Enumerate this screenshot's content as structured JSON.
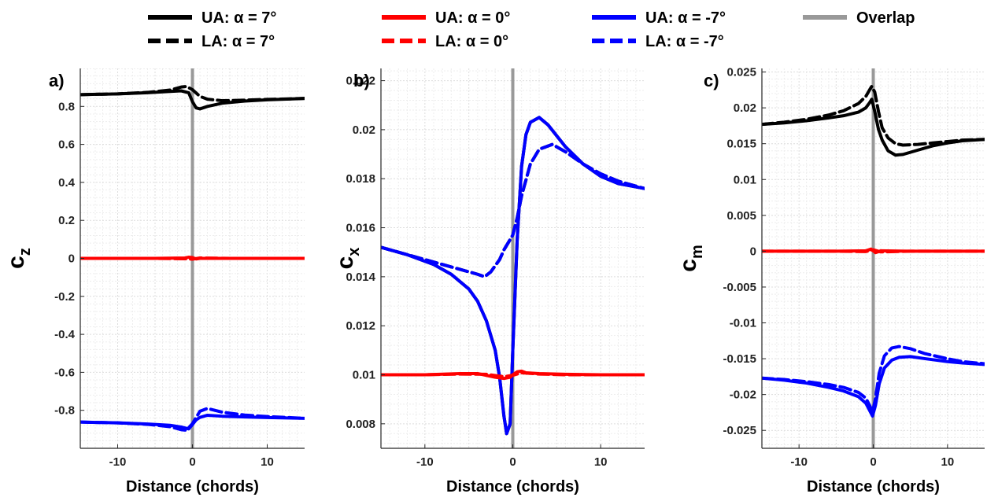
{
  "colors": {
    "black": "#000000",
    "red": "#ff0000",
    "blue": "#0000ff",
    "gray": "#999999",
    "grid_minor": "#ededed",
    "grid_major": "#dcdcdc"
  },
  "legend": [
    {
      "label": "UA: α = 7°",
      "color": "#000000",
      "style": "solid"
    },
    {
      "label": "UA: α = 0°",
      "color": "#ff0000",
      "style": "solid"
    },
    {
      "label": "UA: α = -7°",
      "color": "#0000ff",
      "style": "solid"
    },
    {
      "label": "Overlap",
      "color": "#999999",
      "style": "solid"
    },
    {
      "label": "LA: α = 7°",
      "color": "#000000",
      "style": "dashed"
    },
    {
      "label": "LA: α = 0°",
      "color": "#ff0000",
      "style": "dashed"
    },
    {
      "label": "LA: α = -7°",
      "color": "#0000ff",
      "style": "dashed"
    }
  ],
  "chart_data": [
    {
      "type": "line",
      "panel_label": "a)",
      "ylabel": "c",
      "ylabel_sub": "z",
      "xlabel": "Distance (chords)",
      "xlim": [
        -15,
        15
      ],
      "ylim": [
        -1,
        1
      ],
      "xticks": [
        -10,
        0,
        10
      ],
      "yticks": [
        0.8,
        0.6,
        0.4,
        0.2,
        0,
        -0.2,
        -0.4,
        -0.6,
        -0.8
      ],
      "ytick_labels": [
        "0.8",
        "0.6",
        "0.4",
        "0.2",
        "0",
        "-0.2",
        "-0.4",
        "-0.6",
        "-0.8"
      ],
      "grid": true,
      "overlap_x": 0,
      "series": [
        {
          "name": "UA: α = 7°",
          "color": "#000000",
          "style": "solid",
          "x": [
            -15,
            -10,
            -6,
            -3,
            -1.5,
            -0.5,
            0,
            0.5,
            1,
            2,
            4,
            7,
            10,
            15
          ],
          "y": [
            0.862,
            0.866,
            0.872,
            0.879,
            0.882,
            0.872,
            0.825,
            0.792,
            0.787,
            0.8,
            0.817,
            0.828,
            0.835,
            0.842
          ]
        },
        {
          "name": "LA: α = 7°",
          "color": "#000000",
          "style": "dashed",
          "x": [
            -15,
            -10,
            -6,
            -3,
            -1.5,
            -0.8,
            0,
            1,
            2,
            4,
            7,
            10,
            15
          ],
          "y": [
            0.862,
            0.866,
            0.874,
            0.886,
            0.902,
            0.905,
            0.888,
            0.853,
            0.838,
            0.83,
            0.833,
            0.837,
            0.842
          ]
        },
        {
          "name": "UA: α = 0°",
          "color": "#ff0000",
          "style": "solid",
          "x": [
            -15,
            -5,
            -1,
            -0.5,
            0,
            0.5,
            1,
            5,
            15
          ],
          "y": [
            0.0,
            0.0,
            0.002,
            0.006,
            0.004,
            -0.003,
            0.0,
            0.0,
            0.0
          ]
        },
        {
          "name": "LA: α = 0°",
          "color": "#ff0000",
          "style": "dashed",
          "x": [
            -15,
            -5,
            -1,
            0,
            1,
            5,
            15
          ],
          "y": [
            0.0,
            0.0,
            -0.002,
            -0.004,
            0.002,
            0.0,
            0.0
          ]
        },
        {
          "name": "UA: α = -7°",
          "color": "#0000ff",
          "style": "solid",
          "x": [
            -15,
            -10,
            -6,
            -3,
            -1.5,
            -0.5,
            0,
            0.5,
            1,
            2,
            4,
            7,
            10,
            15
          ],
          "y": [
            -0.862,
            -0.866,
            -0.872,
            -0.879,
            -0.888,
            -0.898,
            -0.875,
            -0.85,
            -0.837,
            -0.826,
            -0.831,
            -0.835,
            -0.838,
            -0.842
          ]
        },
        {
          "name": "LA: α = -7°",
          "color": "#0000ff",
          "style": "dashed",
          "x": [
            -15,
            -10,
            -6,
            -3,
            -1.5,
            -0.8,
            0,
            1,
            2,
            4,
            7,
            10,
            15
          ],
          "y": [
            -0.862,
            -0.866,
            -0.874,
            -0.886,
            -0.902,
            -0.905,
            -0.87,
            -0.805,
            -0.79,
            -0.81,
            -0.825,
            -0.833,
            -0.842
          ]
        }
      ]
    },
    {
      "type": "line",
      "panel_label": "b)",
      "ylabel": "c",
      "ylabel_sub": "x",
      "xlabel": "Distance (chords)",
      "xlim": [
        -15,
        15
      ],
      "ylim": [
        0.007,
        0.0225
      ],
      "xticks": [
        -10,
        0,
        10
      ],
      "yticks": [
        0.008,
        0.01,
        0.012,
        0.014,
        0.016,
        0.018,
        0.02,
        0.022
      ],
      "ytick_labels": [
        "0.008",
        "0.01",
        "0.012",
        "0.014",
        "0.016",
        "0.018",
        "0.02",
        "0.022"
      ],
      "grid": true,
      "overlap_x": 0,
      "series": [
        {
          "name": "UA: α = 7°",
          "color": "#000000",
          "style": "solid",
          "x": [
            -15,
            -12,
            -9,
            -7,
            -5,
            -4,
            -3,
            -2,
            -1.5,
            -1,
            -0.7,
            -0.3,
            0,
            0.5,
            1,
            1.5,
            2,
            3,
            4,
            6,
            8,
            10,
            12,
            15
          ],
          "y": [
            0.0152,
            0.0149,
            0.0145,
            0.0141,
            0.0135,
            0.013,
            0.0122,
            0.011,
            0.0099,
            0.0083,
            0.0076,
            0.008,
            0.011,
            0.0155,
            0.0185,
            0.0198,
            0.0203,
            0.0205,
            0.0202,
            0.0193,
            0.0186,
            0.0181,
            0.0178,
            0.0176
          ]
        },
        {
          "name": "LA: α = 7°",
          "color": "#000000",
          "style": "dashed",
          "x": [
            -15,
            -12,
            -9,
            -7,
            -5,
            -4,
            -3.2,
            -2.5,
            -1.5,
            -1,
            0,
            0.5,
            1,
            2,
            3,
            4.5,
            6,
            8,
            10,
            12,
            15
          ],
          "y": [
            0.0152,
            0.0149,
            0.0146,
            0.0144,
            0.0142,
            0.0141,
            0.014,
            0.0142,
            0.0147,
            0.0151,
            0.0157,
            0.0164,
            0.0173,
            0.0186,
            0.0192,
            0.0194,
            0.0191,
            0.0186,
            0.0182,
            0.0179,
            0.0176
          ]
        },
        {
          "name": "UA: α = -7°",
          "color": "#0000ff",
          "style": "solid",
          "x": [
            -15,
            -12,
            -9,
            -7,
            -5,
            -4,
            -3,
            -2,
            -1.5,
            -1,
            -0.7,
            -0.3,
            0,
            0.5,
            1,
            1.5,
            2,
            3,
            4,
            6,
            8,
            10,
            12,
            15
          ],
          "y": [
            0.0152,
            0.0149,
            0.0145,
            0.0141,
            0.0135,
            0.013,
            0.0122,
            0.011,
            0.0099,
            0.0083,
            0.0076,
            0.008,
            0.011,
            0.0155,
            0.0185,
            0.0198,
            0.0203,
            0.0205,
            0.0202,
            0.0193,
            0.0186,
            0.0181,
            0.0178,
            0.0176
          ]
        },
        {
          "name": "LA: α = -7°",
          "color": "#0000ff",
          "style": "dashed",
          "x": [
            -15,
            -12,
            -9,
            -7,
            -5,
            -4,
            -3.2,
            -2.5,
            -1.5,
            -1,
            0,
            0.5,
            1,
            2,
            3,
            4.5,
            6,
            8,
            10,
            12,
            15
          ],
          "y": [
            0.0152,
            0.0149,
            0.0146,
            0.0144,
            0.0142,
            0.0141,
            0.014,
            0.0142,
            0.0147,
            0.0151,
            0.0157,
            0.0164,
            0.0173,
            0.0186,
            0.0192,
            0.0194,
            0.0191,
            0.0186,
            0.0182,
            0.0179,
            0.0176
          ]
        },
        {
          "name": "UA: α = 0°",
          "color": "#ff0000",
          "style": "solid",
          "x": [
            -15,
            -10,
            -6,
            -4,
            -2,
            -1,
            -0.3,
            0,
            0.5,
            1,
            1.5,
            3,
            6,
            10,
            15
          ],
          "y": [
            0.01,
            0.01,
            0.01005,
            0.01005,
            0.0099,
            0.00985,
            0.0099,
            0.01,
            0.01012,
            0.01015,
            0.01008,
            0.01005,
            0.01002,
            0.01,
            0.01
          ]
        },
        {
          "name": "LA: α = 0°",
          "color": "#ff0000",
          "style": "dashed",
          "x": [
            -15,
            -10,
            -6,
            -3,
            -1,
            0,
            1,
            3,
            6,
            10,
            15
          ],
          "y": [
            0.01,
            0.01,
            0.01003,
            0.01002,
            0.00992,
            0.00998,
            0.01008,
            0.01003,
            0.01,
            0.01,
            0.01
          ]
        }
      ]
    },
    {
      "type": "line",
      "panel_label": "c)",
      "ylabel": "c",
      "ylabel_sub": "m",
      "xlabel": "Distance (chords)",
      "xlim": [
        -15,
        15
      ],
      "ylim": [
        -0.0275,
        0.0255
      ],
      "xticks": [
        -10,
        0,
        10
      ],
      "yticks": [
        0.025,
        0.02,
        0.015,
        0.01,
        0.005,
        0,
        -0.005,
        -0.01,
        -0.015,
        -0.02,
        -0.025
      ],
      "ytick_labels": [
        "0.025",
        "0.02",
        "0.015",
        "0.01",
        "0.005",
        "0",
        "-0.005",
        "-0.01",
        "-0.015",
        "-0.02",
        "-0.025"
      ],
      "grid": true,
      "overlap_x": 0,
      "series": [
        {
          "name": "UA: α = 7°",
          "color": "#000000",
          "style": "solid",
          "x": [
            -15,
            -12,
            -9,
            -6,
            -4,
            -2,
            -1,
            -0.5,
            -0.2,
            0.2,
            0.7,
            1.2,
            2,
            3,
            4,
            6,
            8,
            10,
            12,
            15
          ],
          "y": [
            0.0177,
            0.0179,
            0.0182,
            0.0186,
            0.0189,
            0.0194,
            0.02,
            0.0207,
            0.0212,
            0.0195,
            0.017,
            0.0155,
            0.014,
            0.0134,
            0.0135,
            0.0141,
            0.0147,
            0.0151,
            0.0154,
            0.0156
          ]
        },
        {
          "name": "LA: α = 7°",
          "color": "#000000",
          "style": "dashed",
          "x": [
            -15,
            -12,
            -9,
            -6,
            -4,
            -2,
            -1,
            -0.5,
            -0.2,
            0.2,
            0.7,
            1.2,
            2,
            3,
            4,
            6,
            8,
            10,
            12,
            15
          ],
          "y": [
            0.0177,
            0.018,
            0.0184,
            0.019,
            0.0196,
            0.0206,
            0.0216,
            0.0225,
            0.023,
            0.0222,
            0.0195,
            0.0172,
            0.0158,
            0.015,
            0.0148,
            0.0149,
            0.0151,
            0.0153,
            0.0155,
            0.0156
          ]
        },
        {
          "name": "UA: α = 0°",
          "color": "#ff0000",
          "style": "solid",
          "x": [
            -15,
            -5,
            -1,
            -0.3,
            0.3,
            1,
            5,
            15
          ],
          "y": [
            0.0,
            0.0,
            5e-05,
            0.0003,
            -0.0002,
            5e-05,
            0.0,
            0.0
          ]
        },
        {
          "name": "LA: α = 0°",
          "color": "#ff0000",
          "style": "dashed",
          "x": [
            -15,
            -5,
            -1,
            0,
            1,
            5,
            15
          ],
          "y": [
            0.0,
            0.0,
            -5e-05,
            0.0002,
            -0.0001,
            0.0,
            0.0
          ]
        },
        {
          "name": "UA: α = -7°",
          "color": "#0000ff",
          "style": "solid",
          "x": [
            -15,
            -12,
            -9,
            -6,
            -4,
            -2,
            -1,
            -0.5,
            -0.1,
            0.3,
            0.8,
            1.5,
            2.5,
            3.5,
            5,
            7,
            10,
            12,
            15
          ],
          "y": [
            -0.0177,
            -0.018,
            -0.0184,
            -0.019,
            -0.0195,
            -0.0203,
            -0.0212,
            -0.0222,
            -0.023,
            -0.0215,
            -0.0185,
            -0.0163,
            -0.0152,
            -0.0148,
            -0.0147,
            -0.015,
            -0.0154,
            -0.0156,
            -0.0158
          ]
        },
        {
          "name": "LA: α = -7°",
          "color": "#0000ff",
          "style": "dashed",
          "x": [
            -15,
            -12,
            -9,
            -6,
            -4,
            -2,
            -1,
            -0.5,
            -0.1,
            0.3,
            0.8,
            1.5,
            2.5,
            3.5,
            5,
            7,
            10,
            12,
            15
          ],
          "y": [
            -0.0177,
            -0.0179,
            -0.0182,
            -0.0186,
            -0.019,
            -0.0197,
            -0.0205,
            -0.0215,
            -0.0225,
            -0.0205,
            -0.017,
            -0.0146,
            -0.0135,
            -0.0133,
            -0.0136,
            -0.0143,
            -0.015,
            -0.0154,
            -0.0157
          ]
        }
      ]
    }
  ]
}
